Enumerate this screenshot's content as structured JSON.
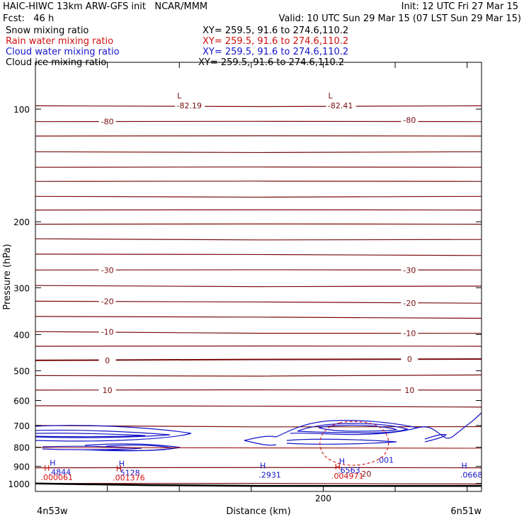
{
  "header": {
    "title": "HAIC-HIWC 13km ARW-GFS init   NCAR/MMM",
    "init": "Init: 12 UTC Fri 27 Mar 15",
    "fcst": "Fcst:   46 h",
    "valid": "Valid: 10 UTC Sun 29 Mar 15 (07 LST Sun 29 Mar 15)",
    "fields": [
      {
        "name": "Snow mixing ratio",
        "xy": "XY= 259.5, 91.6 to 274.6,110.2",
        "color": "#000000"
      },
      {
        "name": "Rain water mixing ratio",
        "xy": "XY= 259.5, 91.6 to 274.6,110.2",
        "color": "#d01010"
      },
      {
        "name": "Cloud water mixing ratio",
        "xy": "XY= 259.5, 91.6 to 274.6,110.2",
        "color": "#1414c8"
      },
      {
        "name": "Cloud ice mixing ratio",
        "xy": "XY= 259.5, 91.6 to 274.6,110.2",
        "color": "#000000"
      }
    ]
  },
  "chart_data": {
    "type": "contour-cross-section",
    "ylabel": "Pressure (hPa)",
    "xlabel": "Distance (km)",
    "y_scale": "log",
    "ylim": [
      1050,
      75
    ],
    "xlim": [
      0,
      310
    ],
    "y_ticks": [
      100,
      200,
      300,
      400,
      500,
      600,
      700,
      800,
      900,
      1000
    ],
    "x_ticks": [
      0,
      50,
      100,
      150,
      200,
      250,
      300
    ],
    "x_tick_labels": [
      {
        "x": 200,
        "label": "200"
      }
    ],
    "x_end_labels": {
      "left": "4n53w",
      "right": "6n51w"
    },
    "grid": false,
    "temperature_contours": {
      "color": "#7a0c0c",
      "levels": [
        {
          "value": -85,
          "p": [
            98,
            98
          ]
        },
        {
          "value": -80,
          "p": [
            108,
            108
          ]
        },
        {
          "value": -75,
          "p": [
            118,
            118
          ]
        },
        {
          "value": -70,
          "p": [
            130,
            130
          ]
        },
        {
          "value": -65,
          "p": [
            143,
            143
          ]
        },
        {
          "value": -60,
          "p": [
            156,
            156
          ]
        },
        {
          "value": -55,
          "p": [
            171,
            171
          ]
        },
        {
          "value": -50,
          "p": [
            186,
            186
          ]
        },
        {
          "value": -45,
          "p": [
            203,
            203
          ]
        },
        {
          "value": -40,
          "p": [
            222,
            223
          ]
        },
        {
          "value": -35,
          "p": [
            244,
            246
          ]
        },
        {
          "value": -30,
          "p": [
            269,
            269
          ]
        },
        {
          "value": -25,
          "p": [
            296,
            297
          ]
        },
        {
          "value": -20,
          "p": [
            326,
            330
          ]
        },
        {
          "value": -15,
          "p": [
            358,
            362
          ]
        },
        {
          "value": -10,
          "p": [
            393,
            397
          ]
        },
        {
          "value": -5,
          "p": [
            430,
            430
          ]
        },
        {
          "value": 0,
          "p": [
            469,
            465
          ]
        },
        {
          "value": 5,
          "p": [
            515,
            513
          ]
        },
        {
          "value": 10,
          "p": [
            563,
            563
          ]
        },
        {
          "value": 15,
          "p": [
            620,
            625
          ]
        },
        {
          "value": 20,
          "p": [
            700,
            705
          ]
        },
        {
          "value": 25,
          "p": [
            908,
            908
          ]
        },
        {
          "value": 30,
          "p": [
            1000,
            1003
          ]
        }
      ],
      "labels": [
        {
          "text": "-80",
          "x": 50,
          "p": 108
        },
        {
          "text": "-80",
          "x": 260,
          "p": 107
        },
        {
          "text": "-30",
          "x": 50,
          "p": 269
        },
        {
          "text": "-30",
          "x": 260,
          "p": 269
        },
        {
          "text": "-20",
          "x": 50,
          "p": 326
        },
        {
          "text": "-20",
          "x": 260,
          "p": 330
        },
        {
          "text": "-10",
          "x": 50,
          "p": 393
        },
        {
          "text": "-10",
          "x": 260,
          "p": 397
        },
        {
          "text": "0",
          "x": 50,
          "p": 469
        },
        {
          "text": "0",
          "x": 260,
          "p": 465
        },
        {
          "text": "10",
          "x": 50,
          "p": 563
        },
        {
          "text": "10",
          "x": 260,
          "p": 563
        },
        {
          "text": "20",
          "x": 230,
          "p": 942
        }
      ],
      "extrema": [
        {
          "symbol": "L",
          "value": "-82.19",
          "x": 100,
          "p": 92
        },
        {
          "symbol": "L",
          "value": "-82.41",
          "x": 205,
          "p": 92
        }
      ]
    },
    "cloud_water": {
      "color": "#1414c8",
      "contour_label": ".001",
      "contour_label_x": 243,
      "contour_label_p": 865,
      "maxima": [
        {
          "symbol": "H",
          "value": ".4844",
          "x": 12,
          "p": 880
        },
        {
          "symbol": "H",
          "value": ".5128",
          "x": 60,
          "p": 885
        },
        {
          "symbol": "H",
          "value": ".2931",
          "x": 158,
          "p": 895
        },
        {
          "symbol": "H",
          "value": ".6563",
          "x": 213,
          "p": 870
        },
        {
          "symbol": "H",
          "value": ".0668",
          "x": 298,
          "p": 895
        }
      ]
    },
    "rain_water": {
      "color": "#d01010",
      "maxima": [
        {
          "symbol": "H",
          "value": ".000061",
          "x": 8,
          "p": 910
        },
        {
          "symbol": "H",
          "value": ".001376",
          "x": 58,
          "p": 912
        },
        {
          "symbol": "H",
          "value": ".004971",
          "x": 210,
          "p": 902
        }
      ]
    },
    "terrain_p": [
      1000,
      1010,
      1015,
      1015,
      1015
    ]
  }
}
